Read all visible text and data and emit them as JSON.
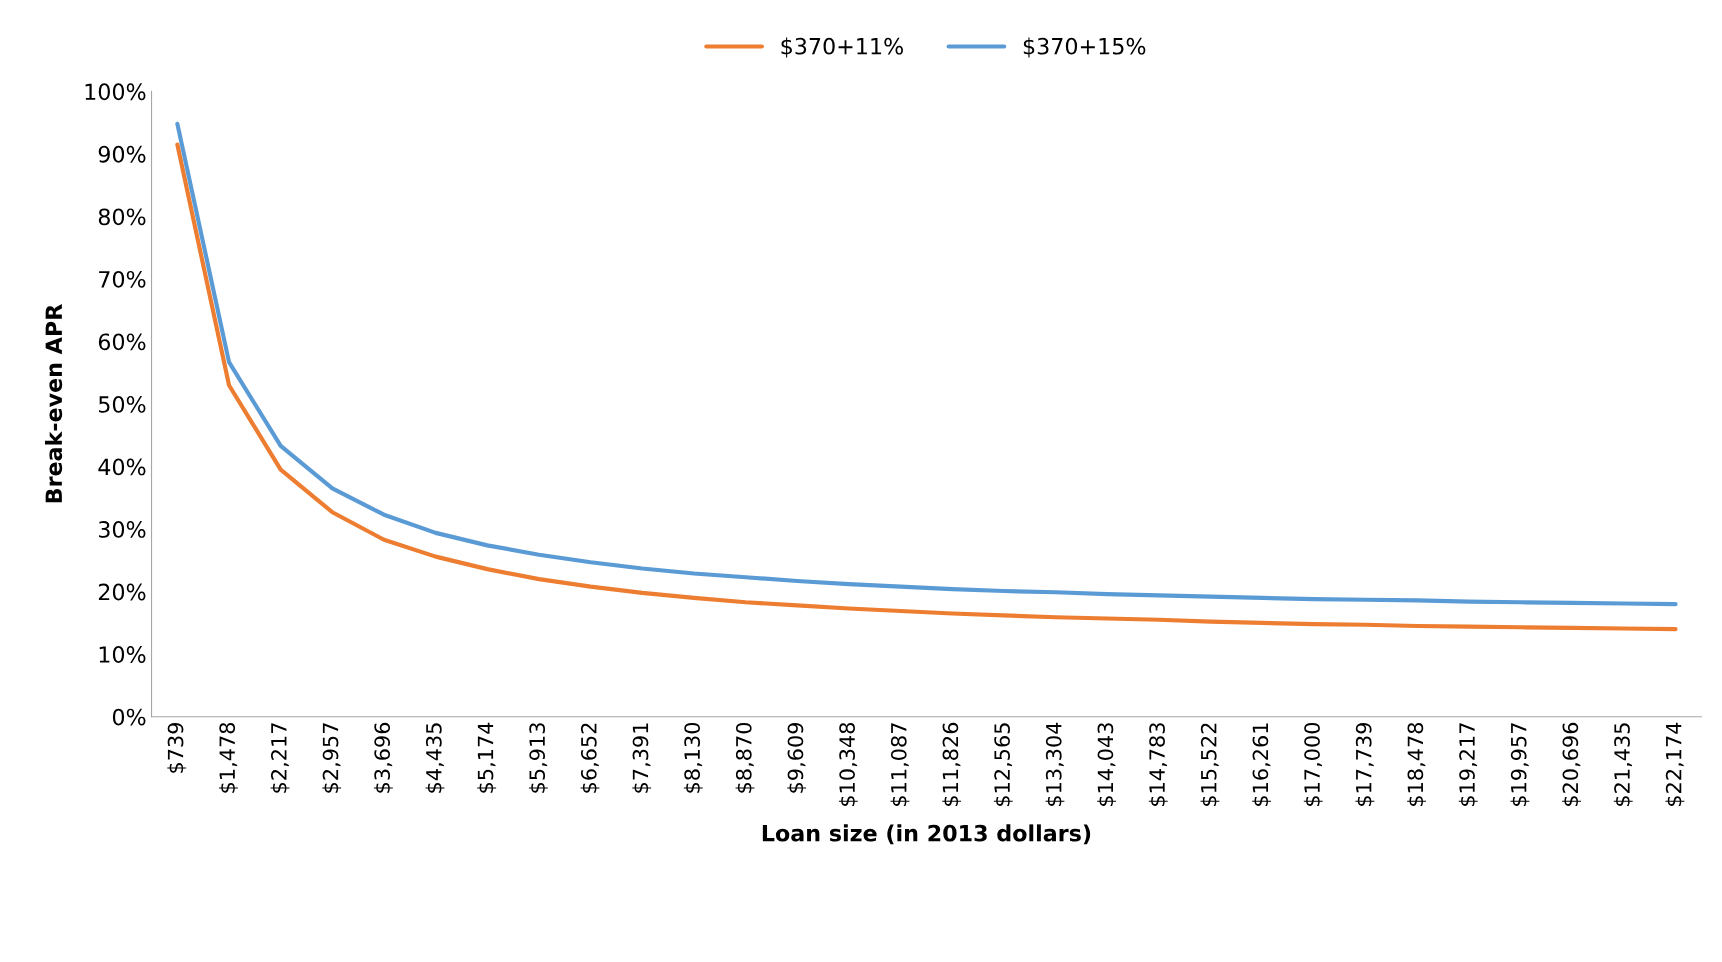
{
  "chart_data": {
    "type": "line",
    "xlabel": "Loan size (in 2013 dollars)",
    "ylabel": "Break-even APR",
    "categories": [
      "$739",
      "$1,478",
      "$2,217",
      "$2,957",
      "$3,696",
      "$4,435",
      "$5,174",
      "$5,913",
      "$6,652",
      "$7,391",
      "$8,130",
      "$8,870",
      "$9,609",
      "$10,348",
      "$11,087",
      "$11,826",
      "$12,565",
      "$13,304",
      "$14,043",
      "$14,783",
      "$15,522",
      "$16,261",
      "$17,000",
      "$17,739",
      "$18,478",
      "$19,217",
      "$19,957",
      "$20,696",
      "$21,435",
      "$22,174"
    ],
    "series": [
      {
        "name": "$370+11%",
        "color": "#ed7d31",
        "values": [
          91.5,
          53,
          39.5,
          32.7,
          28.3,
          25.6,
          23.6,
          22.0,
          20.8,
          19.8,
          19.0,
          18.3,
          17.8,
          17.3,
          16.9,
          16.5,
          16.2,
          15.9,
          15.7,
          15.5,
          15.2,
          15.0,
          14.8,
          14.7,
          14.5,
          14.4,
          14.3,
          14.2,
          14.1,
          14.0
        ]
      },
      {
        "name": "$370+15%",
        "color": "#5b9bd5",
        "values": [
          94.8,
          56.7,
          43.3,
          36.5,
          32.3,
          29.4,
          27.4,
          25.9,
          24.7,
          23.7,
          22.9,
          22.3,
          21.7,
          21.2,
          20.8,
          20.4,
          20.1,
          19.9,
          19.6,
          19.4,
          19.2,
          19.0,
          18.8,
          18.7,
          18.6,
          18.4,
          18.3,
          18.2,
          18.1,
          18.0
        ]
      }
    ],
    "ylim": [
      0,
      100
    ],
    "yticks": [
      {
        "value": 0,
        "label": "0%"
      },
      {
        "value": 10,
        "label": "10%"
      },
      {
        "value": 20,
        "label": "20%"
      },
      {
        "value": 30,
        "label": "30%"
      },
      {
        "value": 40,
        "label": "40%"
      },
      {
        "value": 50,
        "label": "50%"
      },
      {
        "value": 60,
        "label": "60%"
      },
      {
        "value": 70,
        "label": "70%"
      },
      {
        "value": 80,
        "label": "80%"
      },
      {
        "value": 90,
        "label": "90%"
      },
      {
        "value": 100,
        "label": "100%"
      }
    ],
    "legend": "top",
    "marker": "none",
    "line_style": "solid"
  }
}
